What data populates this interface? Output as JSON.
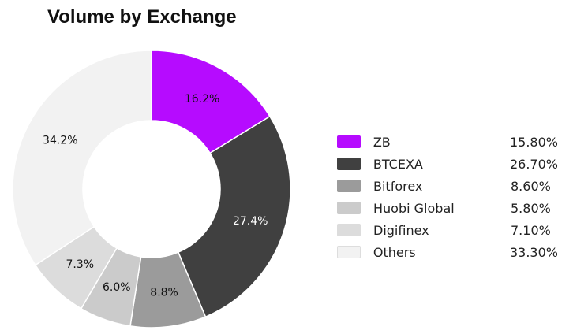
{
  "title": "Volume by Exchange",
  "chart_data": {
    "type": "pie",
    "donut": true,
    "slices": [
      {
        "name": "ZB",
        "slice_label": "16.2%",
        "value": 16.2,
        "color": "#b60bff"
      },
      {
        "name": "BTCEXA",
        "slice_label": "27.4%",
        "value": 27.4,
        "color": "#404040"
      },
      {
        "name": "Bitforex",
        "slice_label": "8.8%",
        "value": 8.8,
        "color": "#9b9b9b"
      },
      {
        "name": "Huobi Global",
        "slice_label": "6.0%",
        "value": 6.0,
        "color": "#cbcbcb"
      },
      {
        "name": "Digifinex",
        "slice_label": "7.3%",
        "value": 7.3,
        "color": "#dcdcdc"
      },
      {
        "name": "Others",
        "slice_label": "34.2%",
        "value": 34.2,
        "color": "#f2f2f2"
      }
    ],
    "legend": {
      "placement": "right",
      "entries": [
        {
          "name": "ZB",
          "value": "15.80%",
          "color": "#b60bff"
        },
        {
          "name": "BTCEXA",
          "value": "26.70%",
          "color": "#404040"
        },
        {
          "name": "Bitforex",
          "value": "8.60%",
          "color": "#9b9b9b"
        },
        {
          "name": "Huobi Global",
          "value": "5.80%",
          "color": "#cbcbcb"
        },
        {
          "name": "Digifinex",
          "value": "7.10%",
          "color": "#dcdcdc"
        },
        {
          "name": "Others",
          "value": "33.30%",
          "color": "#f2f2f2"
        }
      ]
    }
  }
}
